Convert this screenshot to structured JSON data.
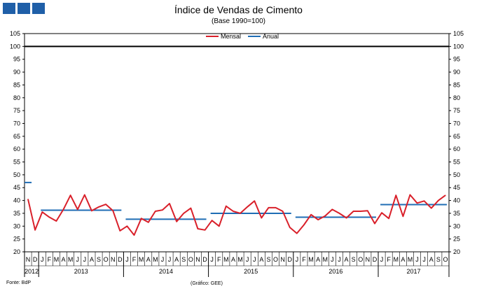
{
  "header": {
    "title": "Índice de Vendas de Cimento",
    "subtitle": "(Base 1990=100)",
    "brand_color": "#1f5fa8"
  },
  "footer": {
    "source": "Fonte: BdP",
    "credit": "(Gráfico: GEE)"
  },
  "chart_data": {
    "type": "line",
    "ylim": [
      20,
      105
    ],
    "yticks": [
      20,
      25,
      30,
      35,
      40,
      45,
      50,
      55,
      60,
      65,
      70,
      75,
      80,
      85,
      90,
      95,
      100,
      105
    ],
    "reference_line": 100,
    "legend": {
      "position": "top-center",
      "entries": [
        "Mensal",
        "Anual"
      ]
    },
    "x_month_labels": [
      "N",
      "D",
      "J",
      "F",
      "M",
      "A",
      "M",
      "J",
      "J",
      "A",
      "S",
      "O",
      "N",
      "D",
      "J",
      "F",
      "M",
      "A",
      "M",
      "J",
      "J",
      "A",
      "S",
      "O",
      "N",
      "D",
      "J",
      "F",
      "M",
      "A",
      "M",
      "J",
      "J",
      "A",
      "S",
      "O",
      "N",
      "D",
      "J",
      "F",
      "M",
      "A",
      "M",
      "J",
      "J",
      "A",
      "S",
      "O",
      "N",
      "D",
      "J",
      "F",
      "M",
      "A",
      "M",
      "J",
      "J",
      "A",
      "S",
      "O"
    ],
    "x_year_labels": [
      {
        "label": "2012",
        "start": 0,
        "end": 1
      },
      {
        "label": "2013",
        "start": 2,
        "end": 13
      },
      {
        "label": "2014",
        "start": 14,
        "end": 25
      },
      {
        "label": "2015",
        "start": 26,
        "end": 37
      },
      {
        "label": "2016",
        "start": 38,
        "end": 49
      },
      {
        "label": "2017",
        "start": 50,
        "end": 59
      }
    ],
    "series": [
      {
        "name": "Mensal",
        "color": "#d9202a",
        "values": [
          40.5,
          28.5,
          35.5,
          33.5,
          32,
          36.5,
          42,
          36.5,
          42.2,
          36,
          37.5,
          38.5,
          36,
          28.2,
          30,
          26.5,
          33,
          31.5,
          35.8,
          36.3,
          38.8,
          31.8,
          35,
          37,
          29,
          28.5,
          32.2,
          30,
          37.8,
          35.8,
          35,
          37.5,
          39.8,
          33.2,
          37.2,
          37.2,
          35.8,
          29.5,
          27.2,
          30.5,
          34.5,
          32.5,
          34,
          36.5,
          35,
          33.2,
          35.8,
          35.8,
          36,
          31,
          35.2,
          33,
          42,
          33.8,
          42.2,
          39,
          39.8,
          37,
          40,
          42
        ]
      },
      {
        "name": "Anual",
        "color": "#1f6db5",
        "segments": [
          {
            "from": 0,
            "to": 0,
            "value": 47
          },
          {
            "from": 2,
            "to": 13,
            "value": 36.2
          },
          {
            "from": 14,
            "to": 25,
            "value": 32.7
          },
          {
            "from": 26,
            "to": 37,
            "value": 35
          },
          {
            "from": 38,
            "to": 49,
            "value": 33.5
          },
          {
            "from": 50,
            "to": 59,
            "value": 38.4
          }
        ]
      }
    ]
  }
}
